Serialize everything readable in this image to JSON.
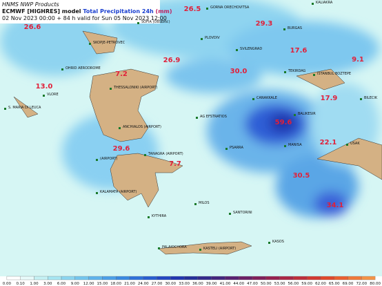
{
  "header": {
    "agency": "HNMS NWP Products",
    "model": "ECMWF [HIGHRES] model",
    "product": "Total Precipitation 24h",
    "unit": "(mm)",
    "valid": "02 Nov 2023 00:00 + 84 h valid for Sun 05 Nov 2023 12:00"
  },
  "stations": [
    "GORNA ORECHOVITSA",
    "KALIAKRA",
    "SOFIA (OBSERV.)",
    "BURGAS",
    "PLOVDIV",
    "SKOPJE-PETROVEC",
    "SVILENGRAD",
    "OHRID AERODROME",
    "TEKIRDAG",
    "ISTANBUL BOZTEPE",
    "THESSALONIKI (AIRPORT)",
    "VLORE",
    "CANAKKALE",
    "BILECIK",
    "S. MARIA DI LEUCA",
    "BALIKESIR",
    "AG EFSTRATIOS",
    "ANCHIALOS (AIRPORT)",
    "PSARRA",
    "MANISA",
    "USAK",
    "TANAGRA (AIRPORT)",
    "(AIRPORT)",
    "KALAMATA (AIRPORT)",
    "MILOS",
    "SANTORINI",
    "KYTHIRA",
    "KASOS",
    "PALAIOCHORA",
    "KASTELI (AIRPORT)"
  ],
  "precipitation_values": [
    "26.5",
    "26.6",
    "29.3",
    "17.6",
    "9.1",
    "26.9",
    "30.0",
    "7.2",
    "13.0",
    "17.9",
    "59.6",
    "22.1",
    "29.6",
    "7.7",
    "30.5",
    "34.1"
  ],
  "colorbar": {
    "labels": [
      "0.00",
      "0.10",
      "1.00",
      "3.00",
      "6.00",
      "9.00",
      "12.00",
      "15.00",
      "18.00",
      "21.00",
      "24.00",
      "27.00",
      "30.00",
      "33.00",
      "36.00",
      "39.00",
      "41.00",
      "44.00",
      "47.00",
      "50.00",
      "53.00",
      "56.00",
      "59.00",
      "62.00",
      "65.00",
      "69.00",
      "72.00",
      "80.00"
    ]
  }
}
